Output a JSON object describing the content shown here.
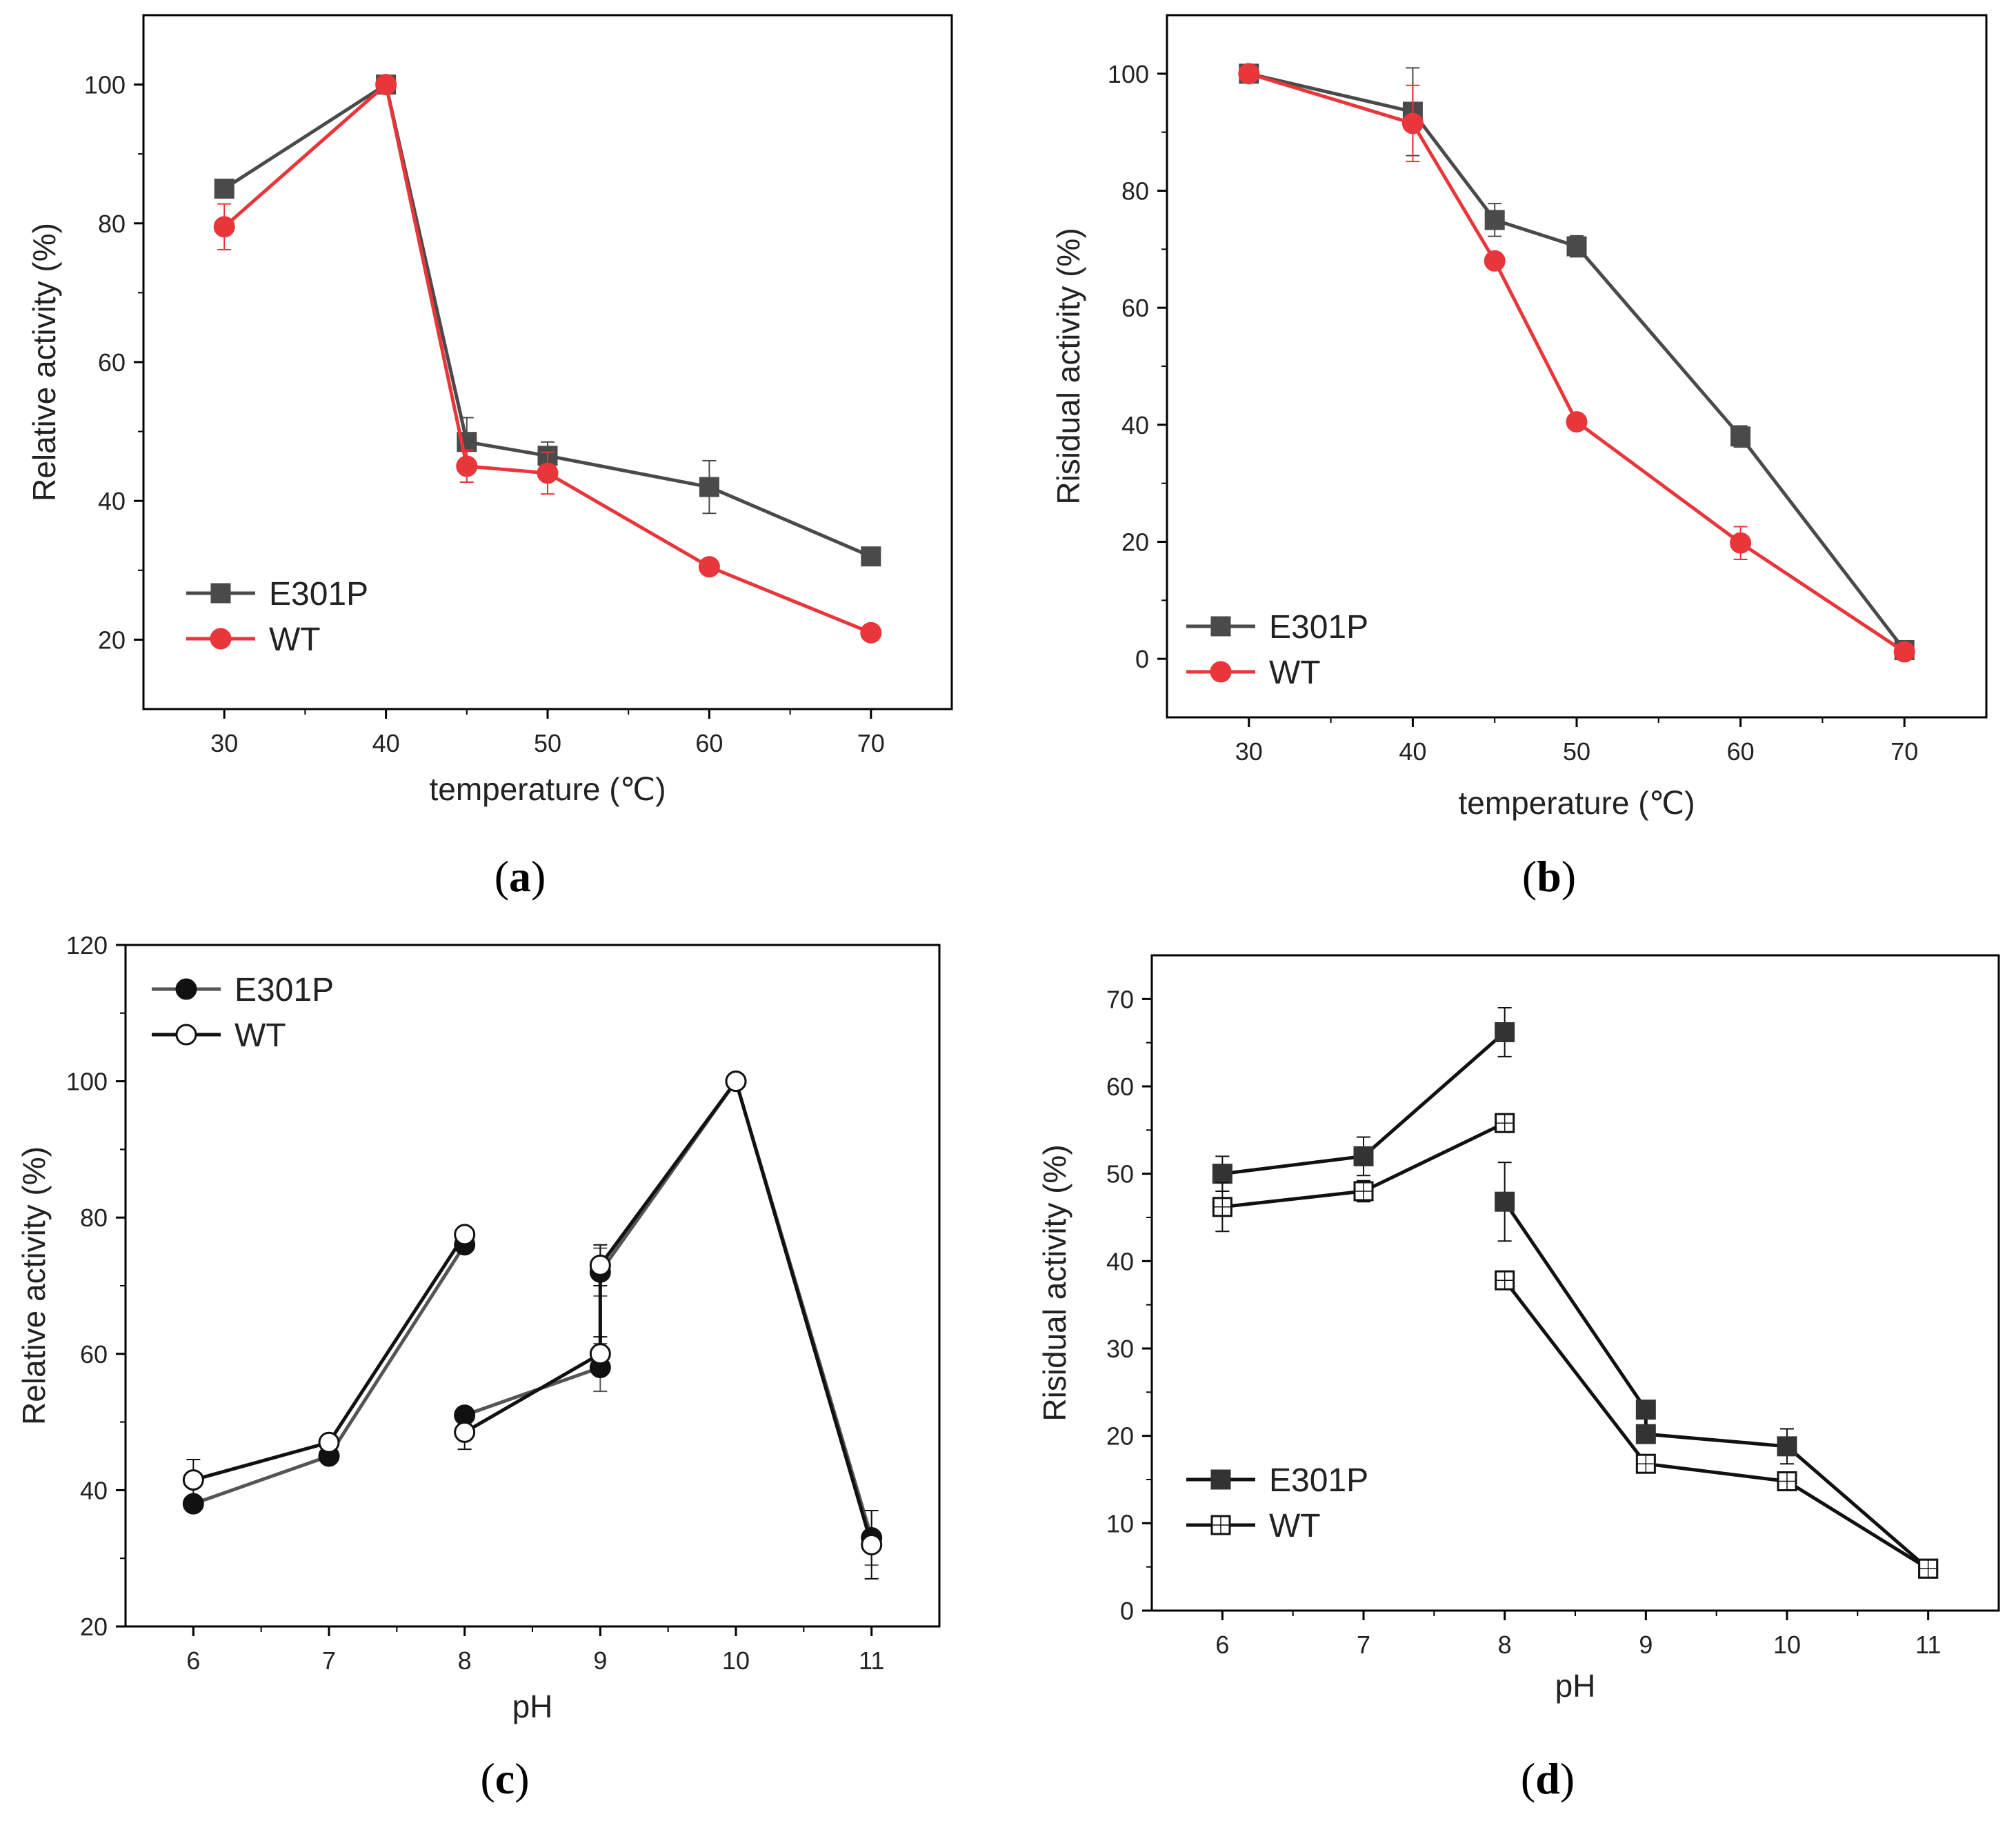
{
  "chart_data": [
    {
      "id": "a",
      "type": "line",
      "panel_label": "a",
      "xlabel": "temperature (℃)",
      "ylabel": "Relative activity (%)",
      "xlim": [
        25,
        75
      ],
      "ylim": [
        10,
        110
      ],
      "xticks": [
        30,
        40,
        50,
        60,
        70
      ],
      "yticks": [
        20,
        40,
        60,
        80,
        100
      ],
      "legend_position": "bottom-left",
      "series": [
        {
          "name": "E301P",
          "color": "#4a4a4a",
          "marker": "square",
          "filled": true,
          "segments": [
            [
              {
                "x": 30,
                "y": 85,
                "err": 1.2
              },
              {
                "x": 40,
                "y": 100,
                "err": 0.5
              },
              {
                "x": 45,
                "y": 48.5,
                "err": 3.5
              },
              {
                "x": 50,
                "y": 46.5,
                "err": 2.0
              },
              {
                "x": 60,
                "y": 42,
                "err": 3.8
              },
              {
                "x": 70,
                "y": 32,
                "err": 1.2
              }
            ]
          ]
        },
        {
          "name": "WT",
          "color": "#e8363a",
          "marker": "circle",
          "filled": true,
          "segments": [
            [
              {
                "x": 30,
                "y": 79.5,
                "err": 3.3
              },
              {
                "x": 40,
                "y": 100,
                "err": 0.5
              },
              {
                "x": 45,
                "y": 45,
                "err": 2.3
              },
              {
                "x": 50,
                "y": 44,
                "err": 3.0
              },
              {
                "x": 60,
                "y": 30.5,
                "err": 1.0
              },
              {
                "x": 70,
                "y": 21,
                "err": 0.6
              }
            ]
          ]
        }
      ]
    },
    {
      "id": "b",
      "type": "line",
      "panel_label": "b",
      "xlabel": "temperature (℃)",
      "ylabel": "Risidual activity (%)",
      "xlim": [
        25,
        75
      ],
      "ylim": [
        -10,
        110
      ],
      "xticks": [
        30,
        40,
        50,
        60,
        70
      ],
      "yticks": [
        0,
        20,
        40,
        60,
        80,
        100
      ],
      "legend_position": "bottom-left",
      "series": [
        {
          "name": "E301P",
          "color": "#4a4a4a",
          "marker": "square",
          "filled": true,
          "segments": [
            [
              {
                "x": 30,
                "y": 100,
                "err": 0.5
              },
              {
                "x": 40,
                "y": 93.5,
                "err": 7.5
              },
              {
                "x": 45,
                "y": 75,
                "err": 2.8
              },
              {
                "x": 50,
                "y": 70.5,
                "err": 1.8
              },
              {
                "x": 60,
                "y": 38,
                "err": 1.8
              },
              {
                "x": 70,
                "y": 1.5,
                "err": 1.0
              }
            ]
          ]
        },
        {
          "name": "WT",
          "color": "#e8363a",
          "marker": "circle",
          "filled": true,
          "segments": [
            [
              {
                "x": 30,
                "y": 100,
                "err": 0.5
              },
              {
                "x": 40,
                "y": 91.5,
                "err": 6.5
              },
              {
                "x": 45,
                "y": 68,
                "err": 0.6
              },
              {
                "x": 50,
                "y": 40.5,
                "err": 0.6
              },
              {
                "x": 60,
                "y": 19.8,
                "err": 2.8
              },
              {
                "x": 70,
                "y": 1.2,
                "err": 0.6
              }
            ]
          ]
        }
      ]
    },
    {
      "id": "c",
      "type": "line",
      "panel_label": "c",
      "xlabel": "pH",
      "ylabel": "Relative activity (%)",
      "xlim": [
        5.5,
        11.5
      ],
      "ylim": [
        20,
        120
      ],
      "xticks": [
        6,
        7,
        8,
        9,
        10,
        11
      ],
      "yticks": [
        20,
        40,
        60,
        80,
        100,
        120
      ],
      "legend_position": "top-left",
      "series": [
        {
          "name": "E301P",
          "color": "#111111",
          "line_color": "#555555",
          "marker": "circle",
          "filled": true,
          "segments": [
            [
              {
                "x": 6,
                "y": 38,
                "err": 0.8
              },
              {
                "x": 7,
                "y": 45,
                "err": 0.6
              },
              {
                "x": 8,
                "y": 76,
                "err": 0.8
              }
            ],
            [
              {
                "x": 8,
                "y": 51,
                "err": 0.6
              },
              {
                "x": 9,
                "y": 58,
                "err": 3.5
              },
              {
                "x": 9,
                "y": 72,
                "err": 3.5
              },
              {
                "x": 10,
                "y": 100,
                "err": 0.5
              },
              {
                "x": 11,
                "y": 33,
                "err": 4.0
              }
            ]
          ]
        },
        {
          "name": "WT",
          "color": "#111111",
          "line_color": "#111111",
          "marker": "circle",
          "filled": false,
          "segments": [
            [
              {
                "x": 6,
                "y": 41.5,
                "err": 3.0
              },
              {
                "x": 7,
                "y": 47,
                "err": 0.8
              },
              {
                "x": 8,
                "y": 77.5,
                "err": 0.8
              }
            ],
            [
              {
                "x": 8,
                "y": 48.5,
                "err": 2.5
              },
              {
                "x": 9,
                "y": 60,
                "err": 2.5
              },
              {
                "x": 9,
                "y": 73,
                "err": 3.0
              },
              {
                "x": 10,
                "y": 100,
                "err": 0.5
              },
              {
                "x": 11,
                "y": 32,
                "err": 5.0
              }
            ]
          ]
        }
      ]
    },
    {
      "id": "d",
      "type": "line",
      "panel_label": "d",
      "xlabel": "pH",
      "ylabel": "Risidual activity (%)",
      "xlim": [
        5.5,
        11.5
      ],
      "ylim": [
        0,
        75
      ],
      "xticks": [
        6,
        7,
        8,
        9,
        10,
        11
      ],
      "yticks": [
        0,
        10,
        20,
        30,
        40,
        50,
        60,
        70
      ],
      "legend_position": "bottom-left",
      "series": [
        {
          "name": "E301P",
          "color": "#333333",
          "line_color": "#111111",
          "marker": "square",
          "filled": true,
          "segments": [
            [
              {
                "x": 6,
                "y": 50,
                "err": 2.0
              },
              {
                "x": 7,
                "y": 52,
                "err": 2.2
              },
              {
                "x": 8,
                "y": 66.2,
                "err": 2.8
              }
            ],
            [
              {
                "x": 8,
                "y": 46.8,
                "err": 4.5
              },
              {
                "x": 9,
                "y": 23,
                "err": 0.8
              },
              {
                "x": 9,
                "y": 20.2,
                "err": 0.8
              },
              {
                "x": 10,
                "y": 18.8,
                "err": 2.0
              },
              {
                "x": 11,
                "y": 4.8,
                "err": 0.5
              }
            ]
          ]
        },
        {
          "name": "WT",
          "color": "#111111",
          "line_color": "#111111",
          "marker": "square",
          "filled": false,
          "segments": [
            [
              {
                "x": 6,
                "y": 46.2,
                "err": 2.8
              },
              {
                "x": 7,
                "y": 48,
                "err": 1.2
              },
              {
                "x": 8,
                "y": 55.8,
                "err": 0.8
              }
            ],
            [
              {
                "x": 8,
                "y": 37.8,
                "err": 1.0
              },
              {
                "x": 9,
                "y": 16.8,
                "err": 0.8
              },
              {
                "x": 10,
                "y": 14.8,
                "err": 0.8
              },
              {
                "x": 11,
                "y": 4.8,
                "err": 0.5
              }
            ]
          ]
        }
      ]
    }
  ]
}
